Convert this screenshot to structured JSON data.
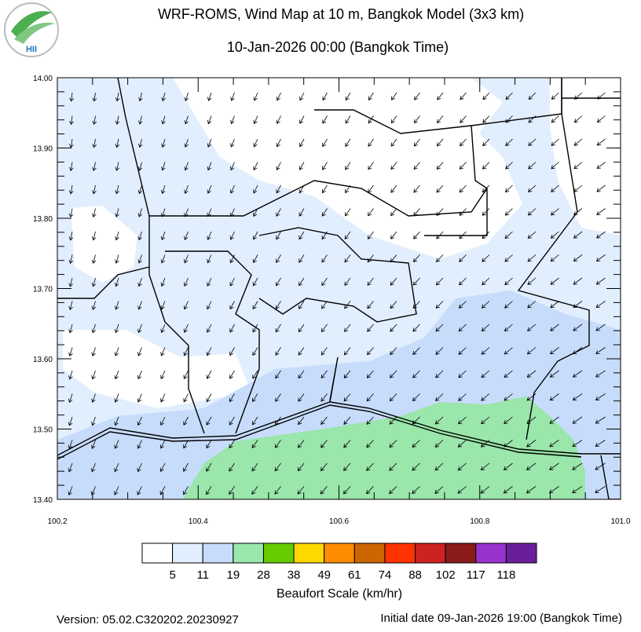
{
  "logo": {
    "text": "HII"
  },
  "chart_data": {
    "type": "map",
    "title": "WRF-ROMS, Wind Map at 10 m, Bangkok Model (3x3 km)",
    "subtitle": "10-Jan-2026 00:00 (Bangkok Time)",
    "xlim": [
      100.2,
      101.0
    ],
    "ylim": [
      13.4,
      14.0
    ],
    "xticks": [
      {
        "value": 100.2,
        "label": "100.2"
      },
      {
        "value": 100.4,
        "label": "100.4"
      },
      {
        "value": 100.6,
        "label": "100.6"
      },
      {
        "value": 100.8,
        "label": "100.8"
      },
      {
        "value": 101.0,
        "label": "101.0"
      }
    ],
    "yticks": [
      {
        "value": 13.4,
        "label": "13.40"
      },
      {
        "value": 13.5,
        "label": "13.50"
      },
      {
        "value": 13.6,
        "label": "13.60"
      },
      {
        "value": 13.7,
        "label": "13.70"
      },
      {
        "value": 13.8,
        "label": "13.80"
      },
      {
        "value": 13.9,
        "label": "13.90"
      },
      {
        "value": 14.0,
        "label": "14.00"
      }
    ],
    "colorbar": {
      "label": "Beaufort Scale (km/hr)",
      "colors": [
        "#ffffff",
        "#e1eefe",
        "#c7dcfb",
        "#9ae6ab",
        "#66cc00",
        "#ffd800",
        "#ff8c00",
        "#cc6600",
        "#ff3300",
        "#cc2222",
        "#8b1a1a",
        "#9933cc",
        "#6a1f9a"
      ],
      "ticks": [
        5,
        11,
        19,
        28,
        38,
        49,
        61,
        74,
        88,
        102,
        117,
        118
      ]
    }
  },
  "footer": {
    "version": "Version: 05.02.C320202.20230927",
    "initial_date": "Initial date 09-Jan-2026 19:00 (Bangkok Time)"
  }
}
